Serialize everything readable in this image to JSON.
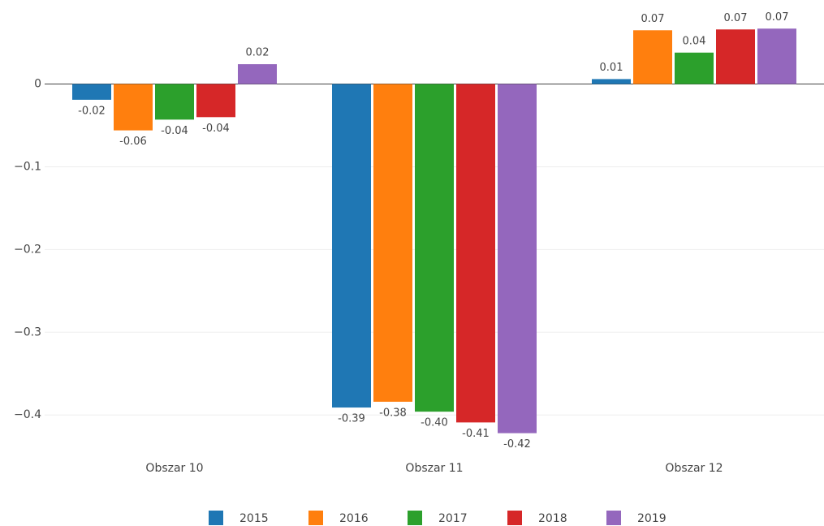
{
  "chart_data": {
    "type": "bar",
    "categories": [
      "Obszar 10",
      "Obszar 11",
      "Obszar 12"
    ],
    "series": [
      {
        "name": "2015",
        "color": "#1f77b4",
        "values": [
          -0.019,
          -0.391,
          0.006
        ],
        "value_labels": [
          "-0.02",
          "-0.39",
          "0.01"
        ]
      },
      {
        "name": "2016",
        "color": "#ff7f0e",
        "values": [
          -0.056,
          -0.384,
          0.065
        ],
        "value_labels": [
          "-0.06",
          "-0.38",
          "0.07"
        ]
      },
      {
        "name": "2017",
        "color": "#2ca02c",
        "values": [
          -0.043,
          -0.396,
          0.038
        ],
        "value_labels": [
          "-0.04",
          "-0.40",
          "0.04"
        ]
      },
      {
        "name": "2018",
        "color": "#d62728",
        "values": [
          -0.04,
          -0.409,
          0.066
        ],
        "value_labels": [
          "-0.04",
          "-0.41",
          "0.07"
        ]
      },
      {
        "name": "2019",
        "color": "#9467bd",
        "values": [
          0.024,
          -0.422,
          0.067
        ],
        "value_labels": [
          "0.02",
          "-0.42",
          "0.07"
        ]
      }
    ],
    "ylim": [
      -0.44,
      0.08
    ],
    "yticks": [
      0,
      {
        "value": -0.1,
        "label": "−0.1"
      },
      {
        "value": -0.2,
        "label": "−0.2"
      },
      {
        "value": -0.3,
        "label": "−0.3"
      },
      {
        "value": -0.4,
        "label": "−0.4"
      }
    ],
    "grid": true,
    "legend": "bottom"
  }
}
